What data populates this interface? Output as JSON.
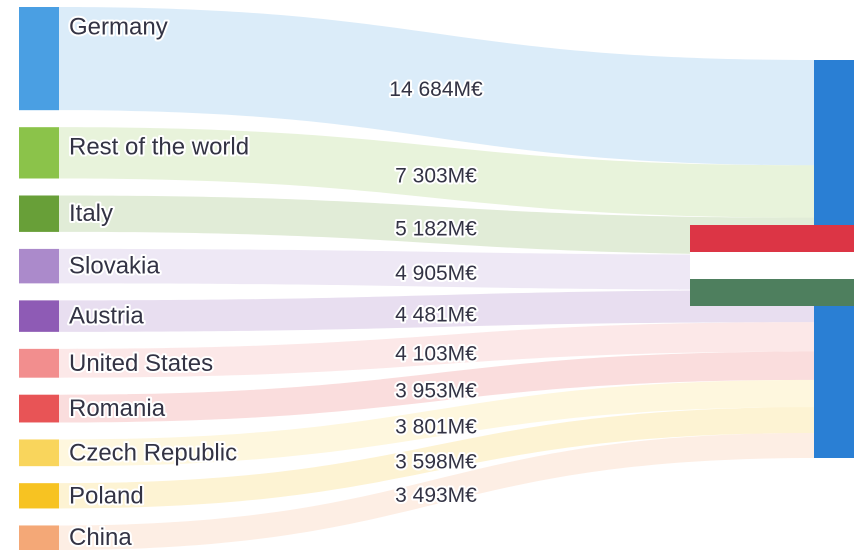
{
  "chart_data": {
    "type": "sankey",
    "target": {
      "name": "",
      "color": "#2a7fd4",
      "flag_colors": [
        "#dc3545",
        "#ffffff",
        "#4e7f5e"
      ]
    },
    "unit_suffix": "M€",
    "sources": [
      {
        "name": "Germany",
        "value": 14684,
        "value_label": "14 684M€",
        "color": "#4a9fe3"
      },
      {
        "name": "Rest of the world",
        "value": 7303,
        "value_label": "7 303M€",
        "color": "#8bc34a"
      },
      {
        "name": "Italy",
        "value": 5182,
        "value_label": "5 182M€",
        "color": "#689f38"
      },
      {
        "name": "Slovakia",
        "value": 4905,
        "value_label": "4 905M€",
        "color": "#ab8acb"
      },
      {
        "name": "Austria",
        "value": 4481,
        "value_label": "4 481M€",
        "color": "#8e5bb5"
      },
      {
        "name": "United States",
        "value": 4103,
        "value_label": "4 103M€",
        "color": "#f28e8e"
      },
      {
        "name": "Romania",
        "value": 3953,
        "value_label": "3 953M€",
        "color": "#e85456"
      },
      {
        "name": "Czech Republic",
        "value": 3801,
        "value_label": "3 801M€",
        "color": "#f9d55c"
      },
      {
        "name": "Poland",
        "value": 3598,
        "value_label": "3 598M€",
        "color": "#f7c322"
      },
      {
        "name": "China",
        "value": 3493,
        "value_label": "3 493M€",
        "color": "#f4a877"
      }
    ]
  }
}
